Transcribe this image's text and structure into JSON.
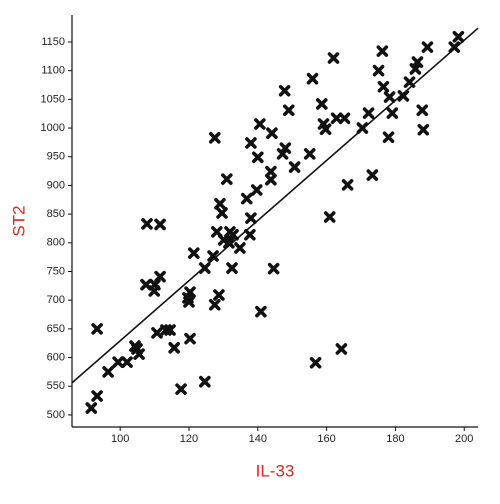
{
  "chart_data": {
    "type": "scatter",
    "xlabel": "IL-33",
    "ylabel": "ST2",
    "xlim": [
      86,
      204
    ],
    "ylim": [
      479,
      1197
    ],
    "xticks": [
      100,
      120,
      140,
      160,
      180,
      200
    ],
    "yticks": [
      500,
      550,
      600,
      650,
      700,
      750,
      800,
      850,
      900,
      950,
      1000,
      1050,
      1100,
      1150
    ],
    "color": "#111111",
    "x": [
      91.6,
      93.3,
      93.3,
      96.5,
      99.4,
      102,
      104.3,
      104.9,
      105.5,
      107.5,
      107.8,
      109.9,
      110.1,
      111.6,
      111.6,
      110.7,
      113.3,
      114.5,
      115.7,
      117.7,
      119.7,
      120.3,
      120,
      120.3,
      121.4,
      124.6,
      124.6,
      127,
      127.5,
      128.7,
      127.5,
      128.1,
      129,
      129.6,
      130.1,
      131,
      131.9,
      132.8,
      131.6,
      132.5,
      134.8,
      136.8,
      137.7,
      138,
      138,
      140,
      139.7,
      140.6,
      140.9,
      143.8,
      143.8,
      144.1,
      144.6,
      147.2,
      148,
      147.8,
      149,
      150.7,
      155.1,
      155.9,
      156.8,
      158.6,
      159.1,
      159.7,
      160.9,
      162,
      162.9,
      164.3,
      165.2,
      166.1,
      170.4,
      172.2,
      173.3,
      175.1,
      176.2,
      176.5,
      178,
      178.3,
      179.1,
      182.3,
      184.1,
      185.8,
      186.4,
      187.8,
      188.1,
      189.3,
      197.1,
      198.3
    ],
    "y": [
      512,
      533,
      650,
      575,
      592,
      592,
      620,
      615,
      606,
      727,
      833,
      716,
      727,
      832,
      741,
      643,
      648,
      648,
      617,
      545,
      704,
      714,
      697,
      633,
      782,
      558,
      756,
      777,
      692,
      709,
      983,
      819,
      868,
      852,
      805,
      911,
      819,
      814,
      800,
      756,
      791,
      877,
      814,
      843,
      974,
      949,
      892,
      1007,
      680,
      924,
      910,
      991,
      755,
      955,
      965,
      1065,
      1031,
      932,
      955,
      1086,
      591,
      1042,
      1007,
      998,
      845,
      1122,
      1017,
      615,
      1017,
      901,
      1000,
      1026,
      918,
      1100,
      1134,
      1072,
      984,
      1054,
      1026,
      1056,
      1080,
      1103,
      1115,
      1031,
      997,
      1141,
      1141,
      1159
    ],
    "fit": {
      "x": [
        86,
        204
      ],
      "y": [
        556,
        1174
      ]
    }
  }
}
